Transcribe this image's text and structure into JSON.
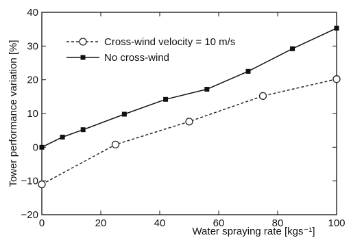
{
  "chart_data": {
    "type": "line",
    "xlabel": "Water spraying rate [kgs⁻¹]",
    "ylabel": "Tower performance variation [%]",
    "xlim": [
      0,
      100
    ],
    "ylim": [
      -20,
      40
    ],
    "xticks": [
      0,
      20,
      40,
      60,
      80,
      100
    ],
    "yticks": [
      -20,
      -10,
      0,
      10,
      20,
      30,
      40
    ],
    "xtick_labels": [
      "0",
      "20",
      "40",
      "60",
      "80",
      "100"
    ],
    "ytick_labels": [
      "−20",
      "−10",
      "0",
      "10",
      "20",
      "30",
      "40"
    ],
    "grid": false,
    "legend_position": "top-left",
    "series": [
      {
        "name": "Cross-wind velocity = 10 m/s",
        "style": "dashed",
        "marker": "open-circle",
        "color": "#222222",
        "x": [
          0,
          25,
          50,
          75,
          100
        ],
        "y": [
          -11,
          0.8,
          7.6,
          15.2,
          20.2
        ]
      },
      {
        "name": "No cross-wind",
        "style": "solid",
        "marker": "filled-square",
        "color": "#111111",
        "x": [
          0,
          7,
          14,
          28,
          42,
          56,
          70,
          85,
          100
        ],
        "y": [
          0,
          3,
          5.2,
          9.8,
          14.2,
          17.2,
          22.5,
          29.2,
          35.3
        ]
      }
    ]
  }
}
